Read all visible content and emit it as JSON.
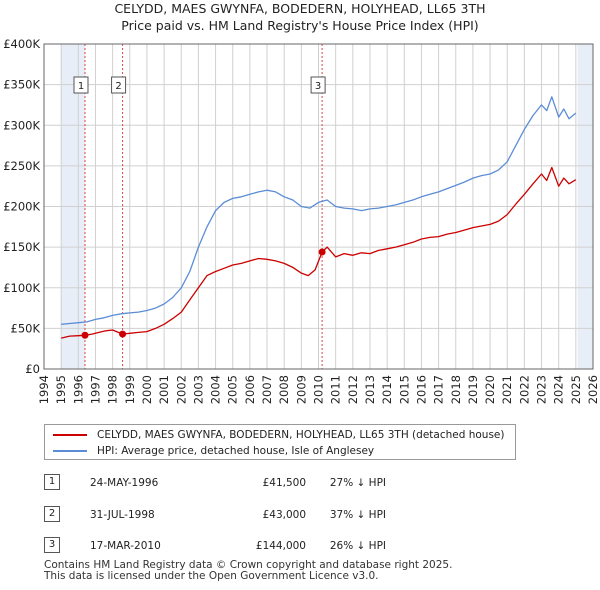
{
  "title_line1": "CELYDD, MAES GWYNFA, BODEDERN, HOLYHEAD, LL65 3TH",
  "title_line2": "Price paid vs. HM Land Registry's House Price Index (HPI)",
  "colors": {
    "property_line": "#cc0000",
    "hpi_line": "#5b8dd6",
    "shade": "#e8eef8",
    "grid": "#d0d0d0",
    "marker_line": "#dd4444"
  },
  "chart_data": {
    "type": "line",
    "xlim": [
      1994,
      2026
    ],
    "ylim": [
      0,
      400000
    ],
    "x_ticks": [
      1994,
      1995,
      1996,
      1997,
      1998,
      1999,
      2000,
      2001,
      2002,
      2003,
      2004,
      2005,
      2006,
      2007,
      2008,
      2009,
      2010,
      2011,
      2012,
      2013,
      2014,
      2015,
      2016,
      2017,
      2018,
      2019,
      2020,
      2021,
      2022,
      2023,
      2024,
      2025,
      2026
    ],
    "y_ticks": [
      {
        "value": 0,
        "label": "£0"
      },
      {
        "value": 50000,
        "label": "£50K"
      },
      {
        "value": 100000,
        "label": "£100K"
      },
      {
        "value": 150000,
        "label": "£150K"
      },
      {
        "value": 200000,
        "label": "£200K"
      },
      {
        "value": 250000,
        "label": "£250K"
      },
      {
        "value": 300000,
        "label": "£300K"
      },
      {
        "value": 350000,
        "label": "£350K"
      },
      {
        "value": 400000,
        "label": "£400K"
      }
    ],
    "shaded_ranges": [
      [
        1995.0,
        1996.4
      ],
      [
        2025.1,
        2026.0
      ]
    ],
    "series": [
      {
        "name": "CELYDD, MAES GWYNFA, BODEDERN, HOLYHEAD, LL65 3TH (detached house)",
        "x": [
          1995.0,
          1995.5,
          1996.0,
          1996.4,
          1996.8,
          1997.2,
          1997.6,
          1998.0,
          1998.58,
          1999.0,
          1999.5,
          2000.0,
          2000.5,
          2001.0,
          2001.5,
          2002.0,
          2002.5,
          2003.0,
          2003.5,
          2004.0,
          2004.5,
          2005.0,
          2005.5,
          2006.0,
          2006.5,
          2007.0,
          2007.5,
          2008.0,
          2008.5,
          2009.0,
          2009.4,
          2009.8,
          2010.21,
          2010.5,
          2011.0,
          2011.5,
          2012.0,
          2012.5,
          2013.0,
          2013.5,
          2014.0,
          2014.5,
          2015.0,
          2015.5,
          2016.0,
          2016.5,
          2017.0,
          2017.5,
          2018.0,
          2018.5,
          2019.0,
          2019.5,
          2020.0,
          2020.5,
          2021.0,
          2021.5,
          2022.0,
          2022.5,
          2023.0,
          2023.3,
          2023.6,
          2024.0,
          2024.3,
          2024.6,
          2025.0
        ],
        "values": [
          38000,
          40500,
          41000,
          41500,
          43000,
          45000,
          47000,
          48000,
          43000,
          44000,
          45000,
          46000,
          50000,
          55000,
          62000,
          70000,
          85000,
          100000,
          115000,
          120000,
          124000,
          128000,
          130000,
          133000,
          136000,
          135000,
          133000,
          130000,
          125000,
          118000,
          115000,
          122000,
          144000,
          150000,
          138000,
          142000,
          140000,
          143000,
          142000,
          146000,
          148000,
          150000,
          153000,
          156000,
          160000,
          162000,
          163000,
          166000,
          168000,
          171000,
          174000,
          176000,
          178000,
          182000,
          190000,
          203000,
          215000,
          228000,
          240000,
          232000,
          248000,
          225000,
          235000,
          228000,
          233000
        ]
      },
      {
        "name": "HPI: Average price, detached house, Isle of Anglesey",
        "x": [
          1995.0,
          1995.5,
          1996.0,
          1996.5,
          1997.0,
          1997.5,
          1998.0,
          1998.5,
          1999.0,
          1999.5,
          2000.0,
          2000.5,
          2001.0,
          2001.5,
          2002.0,
          2002.5,
          2003.0,
          2003.5,
          2004.0,
          2004.5,
          2005.0,
          2005.5,
          2006.0,
          2006.5,
          2007.0,
          2007.5,
          2008.0,
          2008.5,
          2009.0,
          2009.5,
          2010.0,
          2010.5,
          2011.0,
          2011.5,
          2012.0,
          2012.5,
          2013.0,
          2013.5,
          2014.0,
          2014.5,
          2015.0,
          2015.5,
          2016.0,
          2016.5,
          2017.0,
          2017.5,
          2018.0,
          2018.5,
          2019.0,
          2019.5,
          2020.0,
          2020.5,
          2021.0,
          2021.5,
          2022.0,
          2022.5,
          2023.0,
          2023.3,
          2023.6,
          2024.0,
          2024.3,
          2024.6,
          2025.0
        ],
        "values": [
          55000,
          56000,
          57000,
          58000,
          61000,
          63000,
          66000,
          68000,
          69000,
          70000,
          72000,
          75000,
          80000,
          88000,
          100000,
          120000,
          150000,
          175000,
          195000,
          205000,
          210000,
          212000,
          215000,
          218000,
          220000,
          218000,
          212000,
          208000,
          200000,
          198000,
          205000,
          208000,
          200000,
          198000,
          197000,
          195000,
          197000,
          198000,
          200000,
          202000,
          205000,
          208000,
          212000,
          215000,
          218000,
          222000,
          226000,
          230000,
          235000,
          238000,
          240000,
          245000,
          255000,
          275000,
          295000,
          312000,
          325000,
          318000,
          335000,
          310000,
          320000,
          308000,
          315000
        ]
      }
    ],
    "sales": [
      {
        "label": "1",
        "x": 1996.39,
        "value": 41500
      },
      {
        "label": "2",
        "x": 1998.58,
        "value": 43000
      },
      {
        "label": "3",
        "x": 2010.21,
        "value": 144000
      }
    ]
  },
  "legend": {
    "property": "CELYDD, MAES GWYNFA, BODEDERN, HOLYHEAD, LL65 3TH (detached house)",
    "hpi": "HPI: Average price, detached house, Isle of Anglesey"
  },
  "sales_table": [
    {
      "num": "1",
      "date": "24-MAY-1996",
      "price": "£41,500",
      "diff": "27% ↓ HPI"
    },
    {
      "num": "2",
      "date": "31-JUL-1998",
      "price": "£43,000",
      "diff": "37% ↓ HPI"
    },
    {
      "num": "3",
      "date": "17-MAR-2010",
      "price": "£144,000",
      "diff": "26% ↓ HPI"
    }
  ],
  "footer_line1": "Contains HM Land Registry data © Crown copyright and database right 2025.",
  "footer_line2": "This data is licensed under the Open Government Licence v3.0."
}
